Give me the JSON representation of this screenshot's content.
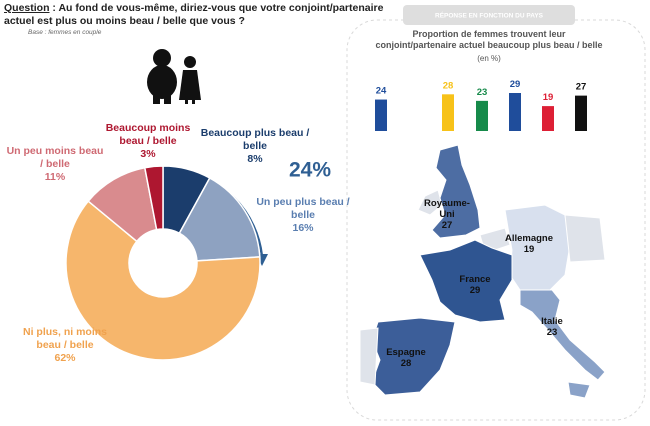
{
  "question": {
    "label": "Question",
    "text": " : Au fond de vous-même, diriez-vous que votre conjoint/partenaire actuel est plus ou moins beau / belle que vous ?",
    "base": "Base : femmes en couple"
  },
  "chart_data": [
    {
      "type": "donut",
      "categories": [
        "Beaucoup plus beau / belle",
        "Un peu plus beau / belle",
        "Ni plus, ni moins beau / belle",
        "Un peu moins beau / belle",
        "Beaucoup moins beau / belle"
      ],
      "values": [
        8,
        16,
        62,
        11,
        3
      ],
      "value_labels": [
        "8%",
        "16%",
        "62%",
        "11%",
        "3%"
      ],
      "colors": [
        "#1b3d6c",
        "#8ea2c1",
        "#f6b66c",
        "#d98b8e",
        "#ae1730"
      ],
      "label_colors": [
        "#1b3d6c",
        "#5a7eb0",
        "#f0a24e",
        "#cf6a73",
        "#ae1730"
      ],
      "annotation": "24%"
    },
    {
      "type": "bar",
      "header": "RÉPONSE EN FONCTION DU PAYS",
      "title": "Proportion de femmes trouvent leur conjoint/partenaire actuel beaucoup plus beau / belle",
      "subtitle": "(en %)",
      "values": [
        24,
        28,
        23,
        29,
        19,
        27
      ],
      "colors": [
        "#1f4d9b",
        "#f7c219",
        "#168a4a",
        "#1f4d9b",
        "#dd1f35",
        "#111111"
      ]
    }
  ],
  "map": {
    "countries": [
      {
        "name": "Royaume-Uni",
        "value": 27
      },
      {
        "name": "Allemagne",
        "value": 19
      },
      {
        "name": "France",
        "value": 29
      },
      {
        "name": "Italie",
        "value": 23
      },
      {
        "name": "Espagne",
        "value": 28
      }
    ]
  }
}
